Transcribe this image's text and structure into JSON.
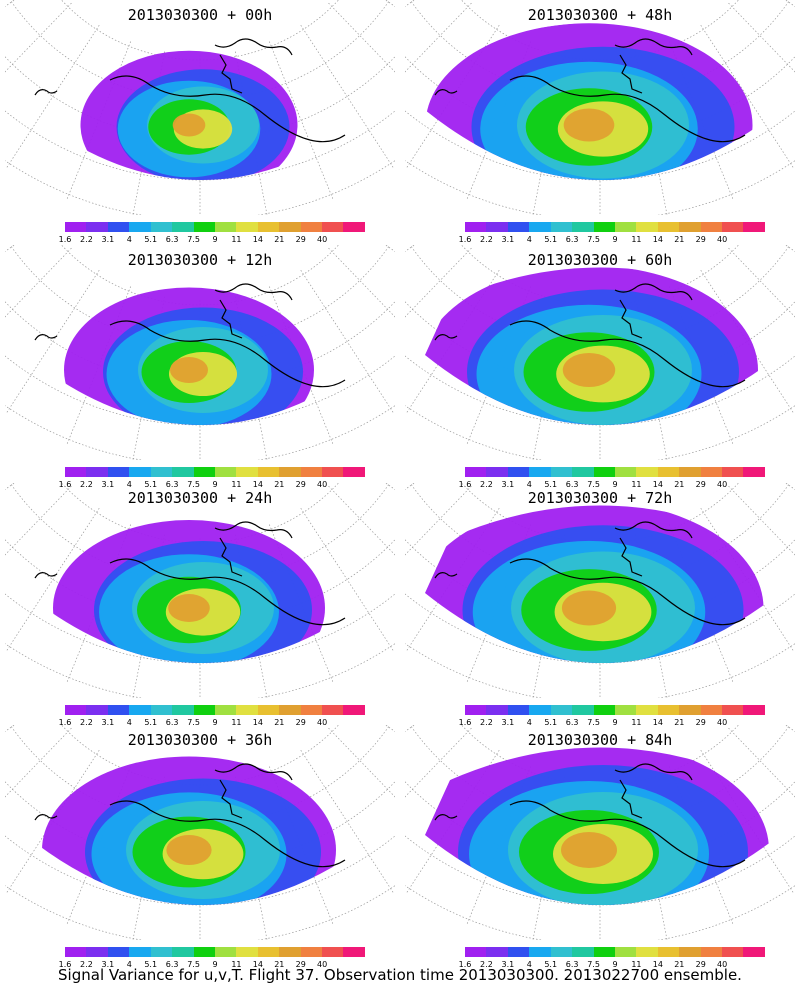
{
  "panels": [
    {
      "title": "2013030300 + 00h",
      "spread": 0.35,
      "peak": 0.9
    },
    {
      "title": "2013030300 + 48h",
      "spread": 0.85,
      "peak": 0.65
    },
    {
      "title": "2013030300 + 12h",
      "spread": 0.5,
      "peak": 0.6
    },
    {
      "title": "2013030300 + 60h",
      "spread": 0.9,
      "peak": 0.65
    },
    {
      "title": "2013030300 + 24h",
      "spread": 0.6,
      "peak": 0.6
    },
    {
      "title": "2013030300 + 72h",
      "spread": 0.95,
      "peak": 0.65
    },
    {
      "title": "2013030300 + 36h",
      "spread": 0.7,
      "peak": 0.6
    },
    {
      "title": "2013030300 + 84h",
      "spread": 1.0,
      "peak": 0.65
    }
  ],
  "colorbar": {
    "colors": [
      "#a020f0",
      "#7b2ff0",
      "#3050f0",
      "#18a8f0",
      "#30c0d0",
      "#20c8a0",
      "#10d010",
      "#a0e040",
      "#e0e040",
      "#e8c030",
      "#e0a030",
      "#f08040",
      "#f05050",
      "#f01878"
    ],
    "labels": [
      "1.6",
      "2.2",
      "3.1",
      "4",
      "5.1",
      "6.3",
      "7.5",
      "9",
      "11",
      "14",
      "21",
      "29",
      "40"
    ]
  },
  "caption": "Signal Variance for u,v,T. Flight 37. Observation time 2013030300. 2013022700 ensemble."
}
